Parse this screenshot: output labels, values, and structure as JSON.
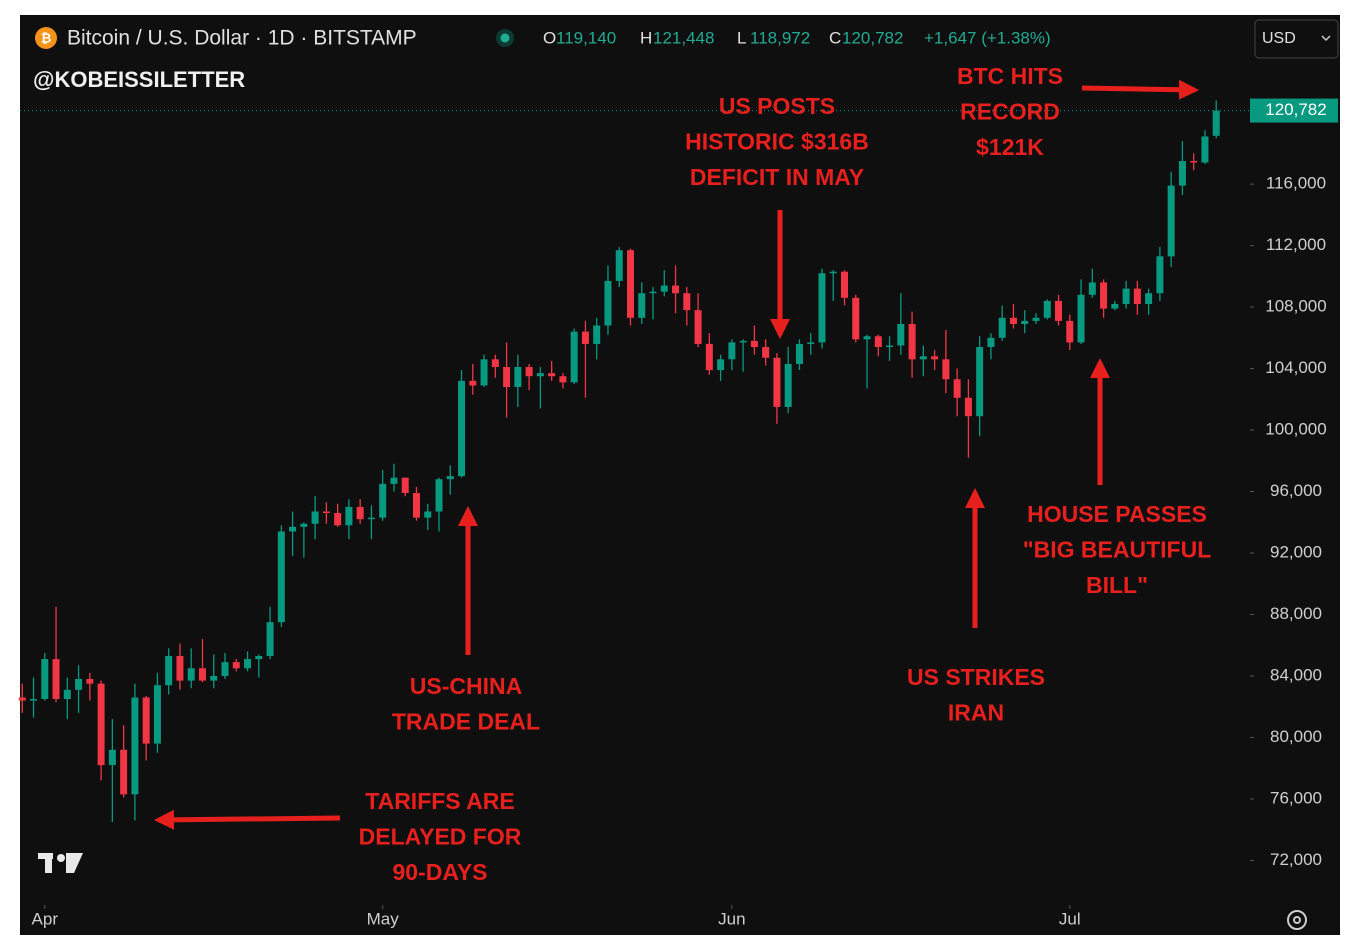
{
  "header": {
    "symbol": "Bitcoin / U.S. Dollar · 1D · BITSTAMP",
    "ohlc": [
      {
        "key": "O",
        "value": "119,140"
      },
      {
        "key": "H",
        "value": "121,448"
      },
      {
        "key": "L",
        "value": "118,972"
      },
      {
        "key": "C",
        "value": "120,782"
      }
    ],
    "change": "+1,647 (+1.38%)",
    "currency": "USD",
    "watermark": "@KOBEISSILETTER"
  },
  "chart_data": {
    "type": "candlestick",
    "up_color": "#089981",
    "down_color": "#f23645",
    "open": [
      82600,
      82400,
      82500,
      85100,
      82500,
      83100,
      83800,
      83500,
      78200,
      79200,
      76300,
      82600,
      79600,
      83400,
      85300,
      83700,
      84500,
      83700,
      84000,
      84900,
      84500,
      85100,
      85300,
      87500,
      93400,
      93700,
      93900,
      94700,
      94600,
      93800,
      95000,
      94200,
      94300,
      96500,
      96900,
      95900,
      94300,
      94700,
      96800,
      97000,
      103200,
      102900,
      104600,
      104100,
      102800,
      104100,
      103500,
      103700,
      103500,
      103100,
      106400,
      105600,
      106800,
      109700,
      111700,
      107300,
      108900,
      109000,
      109400,
      108900,
      107800,
      105600,
      103900,
      104600,
      105700,
      105800,
      105400,
      104700,
      101500,
      104300,
      105600,
      105700,
      110200,
      110300,
      108600,
      105900,
      106100,
      105400,
      105500,
      106900,
      104600,
      104800,
      104600,
      103300,
      102100,
      100900,
      105400,
      106000,
      107300,
      106900,
      107100,
      107300,
      108400,
      107100,
      105700,
      108800,
      109600,
      107900,
      108200,
      109200,
      108200,
      108900,
      111300,
      115900,
      117500,
      117400,
      119140
    ],
    "high": [
      83500,
      83900,
      85500,
      88500,
      83900,
      84700,
      84200,
      83700,
      81200,
      80800,
      83500,
      82700,
      84200,
      85800,
      86100,
      85800,
      86400,
      85400,
      85500,
      85100,
      85600,
      85400,
      88500,
      93800,
      94700,
      94000,
      95700,
      95300,
      95200,
      95500,
      95500,
      95100,
      97400,
      97800,
      96900,
      96300,
      95200,
      96900,
      97700,
      103900,
      104300,
      104900,
      104900,
      105700,
      104900,
      104300,
      104100,
      104500,
      103700,
      106600,
      107100,
      107300,
      110700,
      111900,
      111800,
      109600,
      109300,
      110400,
      110700,
      109300,
      108900,
      106300,
      104900,
      105900,
      105900,
      106800,
      105900,
      105000,
      105400,
      105900,
      106300,
      110500,
      110400,
      110400,
      108800,
      106200,
      106200,
      106100,
      108900,
      107700,
      105500,
      105200,
      106500,
      104000,
      103300,
      106100,
      106300,
      108100,
      108200,
      107800,
      107600,
      108500,
      108800,
      107500,
      109800,
      110500,
      109800,
      108400,
      109700,
      109700,
      109200,
      111900,
      116800,
      118800,
      118000,
      119500,
      121448
    ],
    "low": [
      81600,
      81300,
      82400,
      82300,
      81200,
      81600,
      82400,
      77200,
      74500,
      76100,
      74600,
      78500,
      79000,
      82800,
      83100,
      83200,
      83600,
      83200,
      83800,
      84300,
      84300,
      83900,
      85100,
      87200,
      91800,
      91700,
      92900,
      93900,
      93700,
      92900,
      93900,
      92900,
      94100,
      96000,
      95700,
      94100,
      93500,
      93400,
      95800,
      96900,
      102300,
      102800,
      103400,
      100800,
      101500,
      102600,
      101400,
      103200,
      102700,
      103000,
      102100,
      104600,
      106200,
      109300,
      106800,
      106900,
      107200,
      108700,
      107600,
      106800,
      105400,
      103600,
      103200,
      103900,
      103800,
      104900,
      104200,
      100400,
      101100,
      103900,
      104900,
      105300,
      108400,
      108100,
      105700,
      102700,
      104800,
      104500,
      104900,
      103400,
      103500,
      103900,
      102400,
      100900,
      98200,
      99600,
      104600,
      105800,
      106600,
      106300,
      106900,
      107200,
      106800,
      105200,
      105600,
      108600,
      107300,
      107800,
      107900,
      107500,
      107500,
      108400,
      110600,
      115300,
      116900,
      117300,
      118972
    ],
    "close": [
      82400,
      82500,
      85100,
      82500,
      83100,
      83800,
      83500,
      78200,
      79200,
      76300,
      82600,
      79600,
      83400,
      85300,
      83700,
      84500,
      83700,
      84000,
      84900,
      84500,
      85100,
      85300,
      87500,
      93400,
      93700,
      93900,
      94700,
      94600,
      93800,
      95000,
      94200,
      94300,
      96500,
      96900,
      95900,
      94300,
      94700,
      96800,
      97000,
      103200,
      102900,
      104600,
      104100,
      102800,
      104100,
      103500,
      103700,
      103500,
      103100,
      106400,
      105600,
      106800,
      109700,
      111700,
      107300,
      108900,
      109000,
      109400,
      108900,
      107800,
      105600,
      103900,
      104600,
      105700,
      105800,
      105400,
      104700,
      101500,
      104300,
      105600,
      105700,
      110200,
      110300,
      108600,
      105900,
      106100,
      105400,
      105500,
      106900,
      104600,
      104800,
      104600,
      103300,
      102100,
      100900,
      105400,
      106000,
      107300,
      106900,
      107100,
      107300,
      108400,
      107100,
      105700,
      108800,
      109600,
      107900,
      108200,
      109200,
      108200,
      108900,
      111300,
      115900,
      117500,
      117400,
      119100,
      120782
    ],
    "last_price_label": "120,782",
    "xlim": [
      -0.2,
      109
    ],
    "ylim": [
      69100,
      127000
    ],
    "xticks": [
      {
        "value": 2,
        "label": "Apr"
      },
      {
        "value": 32,
        "label": "May"
      },
      {
        "value": 63,
        "label": "Jun"
      },
      {
        "value": 93,
        "label": "Jul"
      }
    ],
    "yticks": [
      {
        "value": 72000,
        "label": "72,000"
      },
      {
        "value": 76000,
        "label": "76,000"
      },
      {
        "value": 80000,
        "label": "80,000"
      },
      {
        "value": 84000,
        "label": "84,000"
      },
      {
        "value": 88000,
        "label": "88,000"
      },
      {
        "value": 92000,
        "label": "92,000"
      },
      {
        "value": 96000,
        "label": "96,000"
      },
      {
        "value": 100000,
        "label": "100,000"
      },
      {
        "value": 104000,
        "label": "104,000"
      },
      {
        "value": 108000,
        "label": "108,000"
      },
      {
        "value": 112000,
        "label": "112,000"
      },
      {
        "value": 116000,
        "label": "116,000"
      }
    ],
    "annotations": [
      {
        "lines": [
          "US POSTS",
          "HISTORIC $316B",
          "DEFICIT IN MAY"
        ]
      },
      {
        "lines": [
          "BTC HITS",
          "RECORD",
          "$121K"
        ]
      },
      {
        "lines": [
          "US-CHINA",
          "TRADE DEAL"
        ]
      },
      {
        "lines": [
          "TARIFFS ARE",
          "DELAYED FOR",
          "90-DAYS"
        ]
      },
      {
        "lines": [
          "US STRIKES",
          "IRAN"
        ]
      },
      {
        "lines": [
          "HOUSE PASSES",
          "\"BIG BEAUTIFUL",
          "BILL\""
        ]
      }
    ]
  }
}
